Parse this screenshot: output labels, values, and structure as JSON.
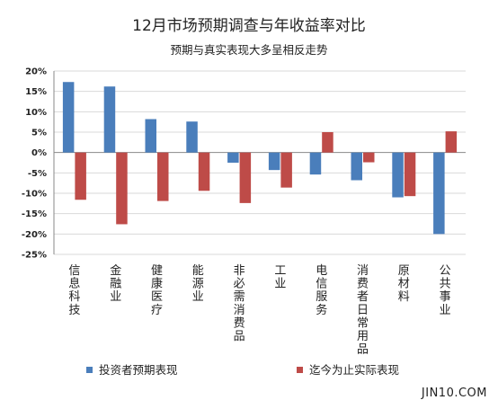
{
  "chart_data": {
    "type": "bar",
    "title": "12月市场预期调查与年收益率对比",
    "subtitle": "预期与真实表现大多呈相反走势",
    "categories": [
      "信息科技",
      "金融业",
      "健康医疗",
      "能源业",
      "非必需消费品",
      "工业",
      "电信服务",
      "消费者日常用品",
      "原材料",
      "公共事业"
    ],
    "series": [
      {
        "name": "投资者预期表现",
        "color": "#4a7ebb",
        "values": [
          17.3,
          16.2,
          8.2,
          7.6,
          -2.5,
          -4.3,
          -5.4,
          -6.8,
          -11.0,
          -20.0
        ]
      },
      {
        "name": "迄今为止实际表现",
        "color": "#be4b48",
        "values": [
          -11.6,
          -17.6,
          -11.9,
          -9.4,
          -12.4,
          -8.6,
          5.0,
          -2.4,
          -10.7,
          5.2
        ]
      }
    ],
    "ylim": [
      -25,
      20
    ],
    "yticks": [
      20,
      15,
      10,
      5,
      0,
      -5,
      -10,
      -15,
      -20,
      -25
    ],
    "ytick_labels": [
      "20%",
      "15%",
      "10%",
      "5%",
      "0%",
      "-5%",
      "-10%",
      "-15%",
      "-20%",
      "-25%"
    ],
    "grid": true,
    "legend_position": "bottom"
  },
  "watermark": "JIN10.COM"
}
